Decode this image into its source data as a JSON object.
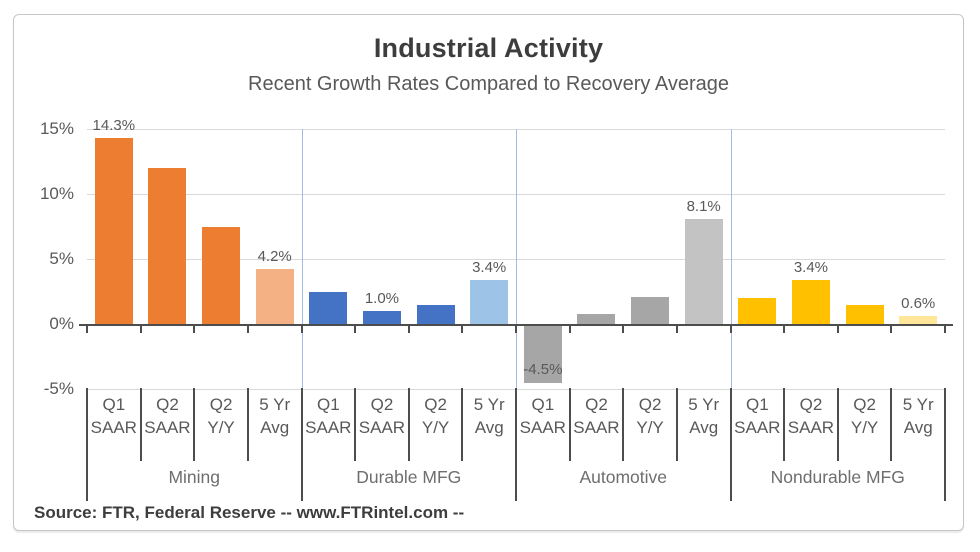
{
  "header": {
    "title": "Industrial Activity",
    "subtitle": "Recent Growth Rates Compared to Recovery Average"
  },
  "footer": {
    "source": "Source: FTR, Federal Reserve  -- www.FTRintel.com --"
  },
  "chart_data": {
    "type": "bar",
    "title": "Industrial Activity",
    "subtitle": "Recent Growth Rates Compared to Recovery Average",
    "xlabel": "",
    "ylabel": "",
    "ylim": [
      -5,
      15
    ],
    "grid": true,
    "legend_position": "none",
    "y_ticks": [
      {
        "label": "15%",
        "value": 15
      },
      {
        "label": "10%",
        "value": 10
      },
      {
        "label": "5%",
        "value": 5
      },
      {
        "label": "0%",
        "value": 0
      },
      {
        "label": "-5%",
        "value": -5
      }
    ],
    "categories": [
      {
        "top": "Q1",
        "bottom": "SAAR"
      },
      {
        "top": "Q2",
        "bottom": "SAAR"
      },
      {
        "top": "Q2",
        "bottom": "Y/Y"
      },
      {
        "top": "5 Yr",
        "bottom": "Avg"
      }
    ],
    "group_separator_color": "#a3bde2",
    "axis_color": "#4d4d4d",
    "gridline_color": "#d9d9d9",
    "groups": [
      {
        "name": "Mining",
        "bar_color": "#ED7D31",
        "avg_bar_color": "#F4B183",
        "values": [
          14.3,
          12.0,
          7.5,
          4.2
        ],
        "data_labels": [
          "14.3%",
          "",
          "",
          "4.2%"
        ]
      },
      {
        "name": "Durable MFG",
        "bar_color": "#4472C4",
        "avg_bar_color": "#9DC3E6",
        "values": [
          2.5,
          1.0,
          1.5,
          3.4
        ],
        "data_labels": [
          "",
          "1.0%",
          "",
          "3.4%"
        ]
      },
      {
        "name": "Automotive",
        "bar_color": "#A6A6A6",
        "avg_bar_color": "#C3C3C3",
        "values": [
          -4.5,
          0.8,
          2.1,
          8.1
        ],
        "data_labels": [
          "-4.5%",
          "",
          "",
          "8.1%"
        ]
      },
      {
        "name": "Nondurable MFG",
        "bar_color": "#FFC000",
        "avg_bar_color": "#FFE699",
        "values": [
          2.0,
          3.4,
          1.5,
          0.6
        ],
        "data_labels": [
          "",
          "3.4%",
          "",
          "0.6%"
        ]
      }
    ]
  }
}
